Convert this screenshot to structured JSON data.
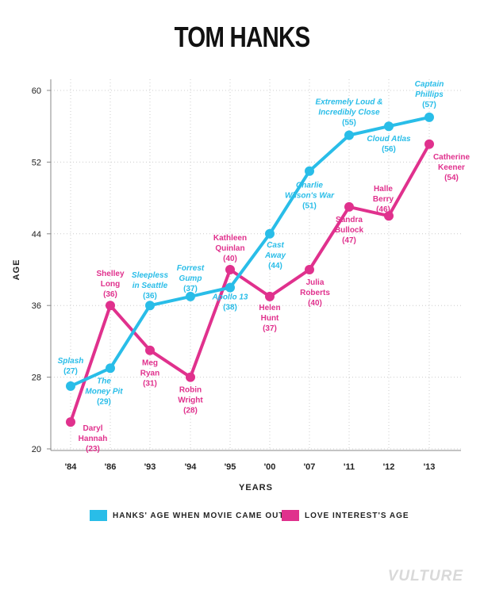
{
  "title": "TOM HANKS",
  "brand": "VULTURE",
  "colors": {
    "hanks": "#29bde8",
    "love": "#e0318d",
    "grid": "#cccccc"
  },
  "legend": {
    "hanks": "HANKS' AGE WHEN MOVIE CAME OUT",
    "love": "LOVE INTEREST'S AGE"
  },
  "chart_data": {
    "type": "line",
    "title": "TOM HANKS",
    "xlabel": "YEARS",
    "ylabel": "AGE",
    "categories": [
      "'84",
      "'86",
      "'93",
      "'94",
      "'95",
      "'00",
      "'07",
      "'11",
      "'12",
      "'13"
    ],
    "yticks": [
      20,
      28,
      36,
      44,
      52,
      60
    ],
    "ylim": [
      20,
      60
    ],
    "grid": true,
    "legend_position": "bottom",
    "series": [
      {
        "name": "HANKS' AGE WHEN MOVIE CAME OUT",
        "values": [
          27,
          29,
          36,
          37,
          38,
          44,
          51,
          55,
          56,
          57
        ],
        "labels": [
          {
            "lines": [
              "Splash",
              "(27)"
            ]
          },
          {
            "lines": [
              "The",
              "Money Pit",
              "(29)"
            ]
          },
          {
            "lines": [
              "Sleepless",
              "in Seattle",
              "(36)"
            ]
          },
          {
            "lines": [
              "Forrest",
              "Gump",
              "(37)"
            ]
          },
          {
            "lines": [
              "Apollo 13",
              "(38)"
            ]
          },
          {
            "lines": [
              "Cast",
              "Away",
              "(44)"
            ]
          },
          {
            "lines": [
              "Charlie",
              "Wilson's War",
              "(51)"
            ]
          },
          {
            "lines": [
              "Extremely Loud &",
              "Incredibly Close",
              "(55)"
            ]
          },
          {
            "lines": [
              "Cloud Atlas",
              "(56)"
            ]
          },
          {
            "lines": [
              "Captain",
              "Phillips",
              "(57)"
            ]
          }
        ]
      },
      {
        "name": "LOVE INTEREST'S AGE",
        "values": [
          23,
          36,
          31,
          28,
          40,
          37,
          40,
          47,
          46,
          54
        ],
        "labels": [
          {
            "lines": [
              "Daryl",
              "Hannah",
              "(23)"
            ]
          },
          {
            "lines": [
              "Shelley",
              "Long",
              "(36)"
            ]
          },
          {
            "lines": [
              "Meg",
              "Ryan",
              "(31)"
            ]
          },
          {
            "lines": [
              "Robin",
              "Wright",
              "(28)"
            ]
          },
          {
            "lines": [
              "Kathleen",
              "Quinlan",
              "(40)"
            ]
          },
          {
            "lines": [
              "Helen",
              "Hunt",
              "(37)"
            ]
          },
          {
            "lines": [
              "Julia",
              "Roberts",
              "(40)"
            ]
          },
          {
            "lines": [
              "Sandra",
              "Bullock",
              "(47)"
            ]
          },
          {
            "lines": [
              "Halle",
              "Berry",
              "(46)"
            ]
          },
          {
            "lines": [
              "Catherine",
              "Keener",
              "(54)"
            ]
          }
        ]
      }
    ]
  }
}
